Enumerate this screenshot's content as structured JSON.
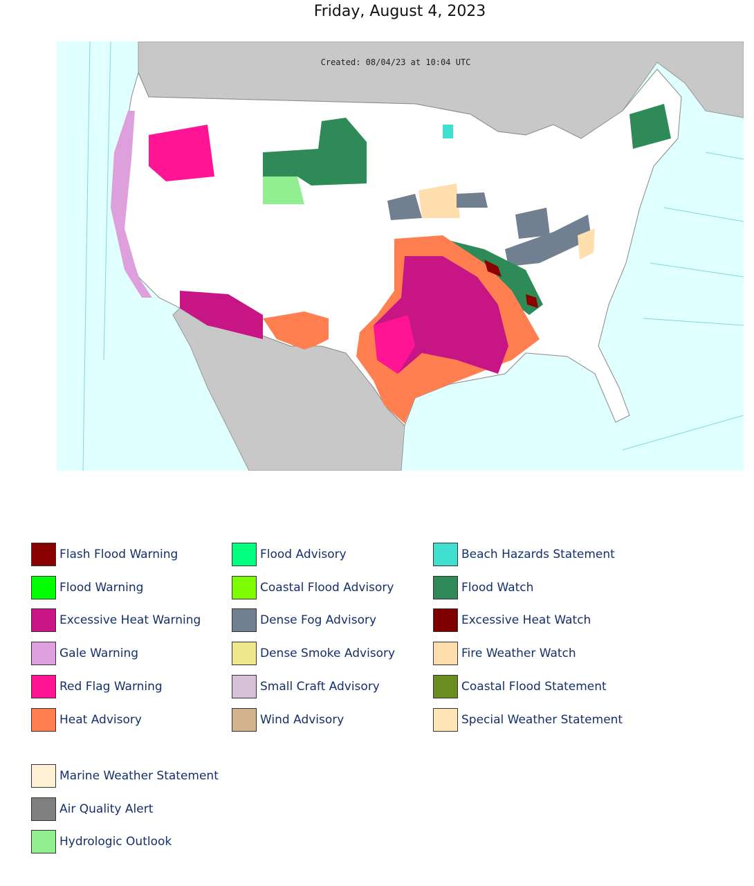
{
  "header": {
    "title": "Friday, August 4, 2023"
  },
  "map": {
    "created": "Created: 08/04/23 at 10:04 UTC"
  },
  "legend": {
    "columns": [
      [
        {
          "name": "Flash Flood Warning",
          "color": "#8b0000"
        },
        {
          "name": "Flood Warning",
          "color": "#00ff00"
        },
        {
          "name": "Excessive Heat Warning",
          "color": "#c71585"
        },
        {
          "name": "Gale Warning",
          "color": "#dda0dd"
        },
        {
          "name": "Red Flag Warning",
          "color": "#ff1493"
        },
        {
          "name": "Heat Advisory",
          "color": "#ff7f50"
        }
      ],
      [
        {
          "name": "Flood Advisory",
          "color": "#00ff7f"
        },
        {
          "name": "Coastal Flood Advisory",
          "color": "#7cfc00"
        },
        {
          "name": "Dense Fog Advisory",
          "color": "#708090"
        },
        {
          "name": "Dense Smoke Advisory",
          "color": "#f0e68c"
        },
        {
          "name": "Small Craft Advisory",
          "color": "#d8bfd8"
        },
        {
          "name": "Wind Advisory",
          "color": "#d2b48c"
        }
      ],
      [
        {
          "name": "Beach Hazards Statement",
          "color": "#40e0d0"
        },
        {
          "name": "Flood Watch",
          "color": "#2e8b57"
        },
        {
          "name": "Excessive Heat Watch",
          "color": "#800000"
        },
        {
          "name": "Fire Weather Watch",
          "color": "#ffdead"
        },
        {
          "name": "Coastal Flood Statement",
          "color": "#6b8e23"
        },
        {
          "name": "Special Weather Statement",
          "color": "#ffe4b5"
        }
      ]
    ],
    "extra": [
      {
        "name": "Marine Weather Statement",
        "color": "#ffefd5"
      },
      {
        "name": "Air Quality Alert",
        "color": "#808080"
      },
      {
        "name": "Hydrologic Outlook",
        "color": "#90ee90"
      }
    ]
  }
}
